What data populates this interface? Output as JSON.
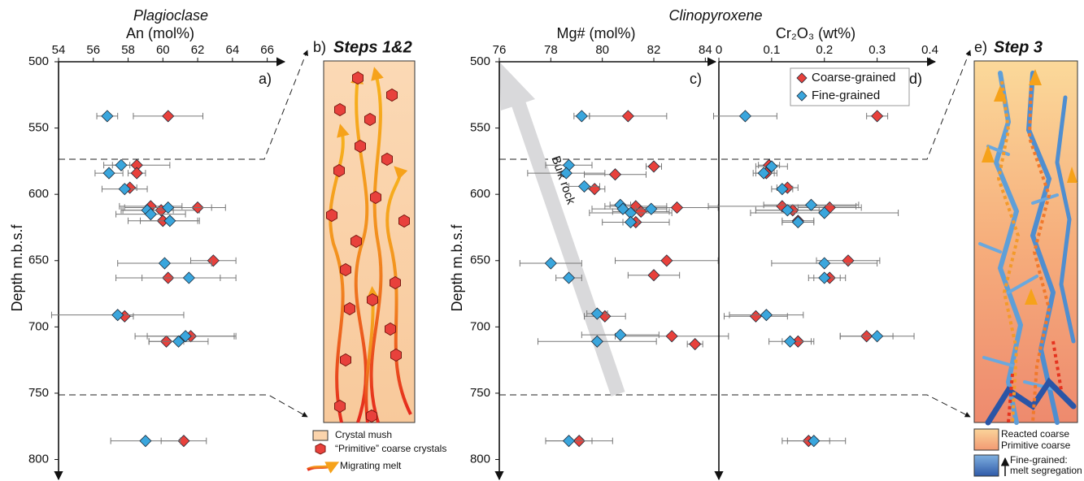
{
  "chart_data": [
    {
      "type": "scatter",
      "panel": "a)",
      "title": "Plagioclase",
      "x_label": "An (mol%)",
      "y_label": "Depth m.b.s.f",
      "xlim": [
        54,
        67
      ],
      "xticks": [
        54,
        56,
        58,
        60,
        62,
        64,
        66
      ],
      "ylim": [
        500,
        815
      ],
      "y_direction": "down",
      "yticks": [
        500,
        550,
        600,
        650,
        700,
        750,
        800
      ],
      "series": [
        {
          "color": "#e8413c",
          "y": [
            541,
            578,
            584,
            595,
            609,
            610,
            612,
            620,
            650,
            663,
            692,
            707,
            711,
            786
          ],
          "x": [
            60.3,
            58.5,
            58.5,
            58.1,
            59.3,
            62,
            59.9,
            60,
            62.9,
            60.3,
            57.8,
            61.6,
            60.2,
            61.2
          ],
          "xerr": [
            2,
            1.9,
            0.5,
            0.4,
            1.8,
            1.6,
            2.2,
            2,
            1.3,
            3,
            0.5,
            2.5,
            1,
            1.3
          ]
        },
        {
          "color": "#3aa6dd",
          "y": [
            541,
            578,
            584,
            596,
            610,
            612,
            615,
            620,
            652,
            663,
            691,
            707,
            711,
            786
          ],
          "x": [
            56.8,
            57.6,
            56.9,
            57.8,
            60.3,
            59.1,
            59.3,
            60.4,
            60.1,
            61.5,
            57.4,
            61.3,
            60.9,
            59
          ],
          "xerr": [
            0.6,
            0.5,
            0.8,
            1.3,
            2.5,
            1.5,
            2,
            1.7,
            2.7,
            2.7,
            3.8,
            2.9,
            1.7,
            2
          ]
        }
      ]
    },
    {
      "type": "scatter",
      "panel": "c)",
      "title": "Clinopyroxene",
      "x_label": "Mg# (mol%)",
      "y_label": "Depth m.b.s.f",
      "annotation": "Bulk rock",
      "xlim": [
        76,
        84.4
      ],
      "xticks": [
        76,
        78,
        80,
        82,
        84
      ],
      "ylim": [
        500,
        815
      ],
      "y_direction": "down",
      "yticks": [
        500,
        550,
        600,
        650,
        700,
        750,
        800
      ],
      "series": [
        {
          "color": "#e8413c",
          "y": [
            541,
            579,
            585,
            596,
            609,
            610,
            613,
            621,
            650,
            661,
            692,
            707,
            713,
            786
          ],
          "x": [
            81,
            82,
            80.5,
            79.7,
            81.3,
            82.9,
            81.5,
            81.3,
            82.5,
            82,
            80.1,
            82.7,
            83.6,
            79.1
          ],
          "xerr": [
            1.5,
            0.3,
            1.2,
            0.4,
            1.2,
            1.6,
            1.1,
            1.3,
            2,
            1,
            0.8,
            2.2,
            0.3,
            1.3
          ]
        },
        {
          "color": "#3aa6dd",
          "y": [
            541,
            578,
            584,
            594,
            608,
            611,
            614,
            611,
            621,
            652,
            663,
            690,
            706,
            711,
            786
          ],
          "x": [
            79.2,
            78.7,
            78.6,
            79.3,
            80.7,
            80.8,
            81.1,
            81.9,
            81.1,
            78,
            78.7,
            79.8,
            80.7,
            79.8,
            78.7
          ],
          "xerr": [
            0.3,
            0.9,
            1.5,
            0.6,
            0.4,
            1.2,
            1.6,
            0.6,
            0.3,
            1.2,
            0.5,
            0.4,
            1.5,
            2.3,
            0.9
          ]
        }
      ]
    },
    {
      "type": "scatter",
      "panel": "d)",
      "x_label": "Cr₂O₃ (wt%)",
      "xlim": [
        0,
        0.41
      ],
      "xticks": [
        0,
        0.1,
        0.2,
        0.3,
        0.4
      ],
      "ylim": [
        500,
        815
      ],
      "y_direction": "down",
      "legend": "upper right",
      "series": [
        {
          "name": "Coarse-grained",
          "color": "#e8413c",
          "y": [
            541,
            578,
            584,
            595,
            609,
            610,
            612,
            620,
            650,
            663,
            692,
            707,
            711,
            786
          ],
          "x": [
            0.3,
            0.095,
            0.09,
            0.13,
            0.12,
            0.21,
            0.14,
            0.15,
            0.245,
            0.21,
            0.07,
            0.28,
            0.15,
            0.17
          ],
          "xerr": [
            0.02,
            0.02,
            0.02,
            0.02,
            0.14,
            0.06,
            0.07,
            0.03,
            0.06,
            0.03,
            0.06,
            0.05,
            0.03,
            0.04
          ]
        },
        {
          "name": "Fine-grained",
          "color": "#3aa6dd",
          "y": [
            541,
            579,
            584,
            596,
            608,
            612,
            614,
            621,
            652,
            663,
            691,
            707,
            711,
            786
          ],
          "x": [
            0.05,
            0.1,
            0.085,
            0.12,
            0.175,
            0.13,
            0.2,
            0.15,
            0.2,
            0.2,
            0.09,
            0.3,
            0.135,
            0.18
          ],
          "xerr": [
            0.06,
            0.03,
            0.02,
            0.02,
            0.09,
            0.06,
            0.14,
            0.03,
            0.1,
            0.03,
            0.07,
            0.07,
            0.04,
            0.06
          ]
        }
      ]
    }
  ],
  "diagrams": {
    "b": {
      "panel": "b)",
      "title": "Steps 1&2",
      "legend": [
        "Crystal mush",
        "“Primitive” coarse crystals",
        "Migrating melt"
      ]
    },
    "e": {
      "panel": "e)",
      "title": "Step 3",
      "legend": [
        "Reacted coarse",
        "Primitive coarse",
        "Fine-grained:",
        "melt segregation"
      ]
    }
  }
}
